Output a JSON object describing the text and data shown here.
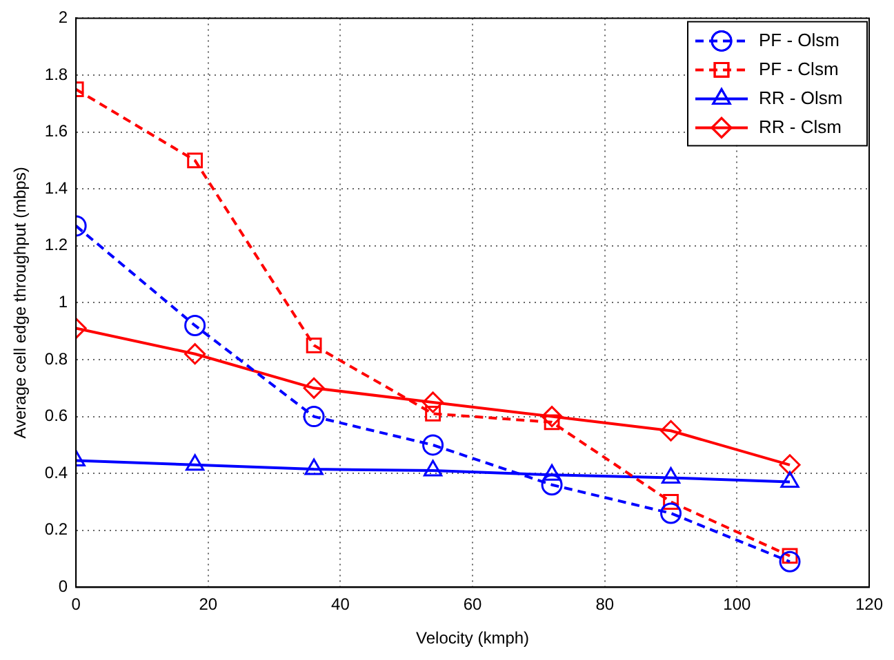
{
  "chart_data": {
    "type": "line",
    "xlabel": "Velocity (kmph)",
    "ylabel": "Average cell edge throughput (mbps)",
    "x": [
      0,
      18,
      36,
      54,
      72,
      90,
      108
    ],
    "series": [
      {
        "name": "PF - Olsm",
        "color": "#0000ff",
        "marker": "circle",
        "line_style": "dashed",
        "values": [
          1.27,
          0.92,
          0.6,
          0.5,
          0.36,
          0.26,
          0.09
        ]
      },
      {
        "name": "PF - Clsm",
        "color": "#ff0000",
        "marker": "square",
        "line_style": "dashed",
        "values": [
          1.75,
          1.5,
          0.85,
          0.61,
          0.58,
          0.3,
          0.11
        ]
      },
      {
        "name": "RR - Olsm",
        "color": "#0000ff",
        "marker": "triangle",
        "line_style": "solid",
        "values": [
          0.445,
          0.43,
          0.415,
          0.41,
          0.395,
          0.385,
          0.37
        ]
      },
      {
        "name": "RR - Clsm",
        "color": "#ff0000",
        "marker": "diamond",
        "line_style": "solid",
        "values": [
          0.91,
          0.82,
          0.7,
          0.65,
          0.6,
          0.55,
          0.43
        ]
      }
    ],
    "xlim": [
      0,
      120
    ],
    "xticks": [
      0,
      20,
      40,
      60,
      80,
      100,
      120
    ],
    "ylim": [
      0,
      2
    ],
    "yticks": [
      0,
      0.2,
      0.4,
      0.6,
      0.8,
      1,
      1.2,
      1.4,
      1.6,
      1.8,
      2
    ],
    "grid": true,
    "legend": "top right"
  }
}
